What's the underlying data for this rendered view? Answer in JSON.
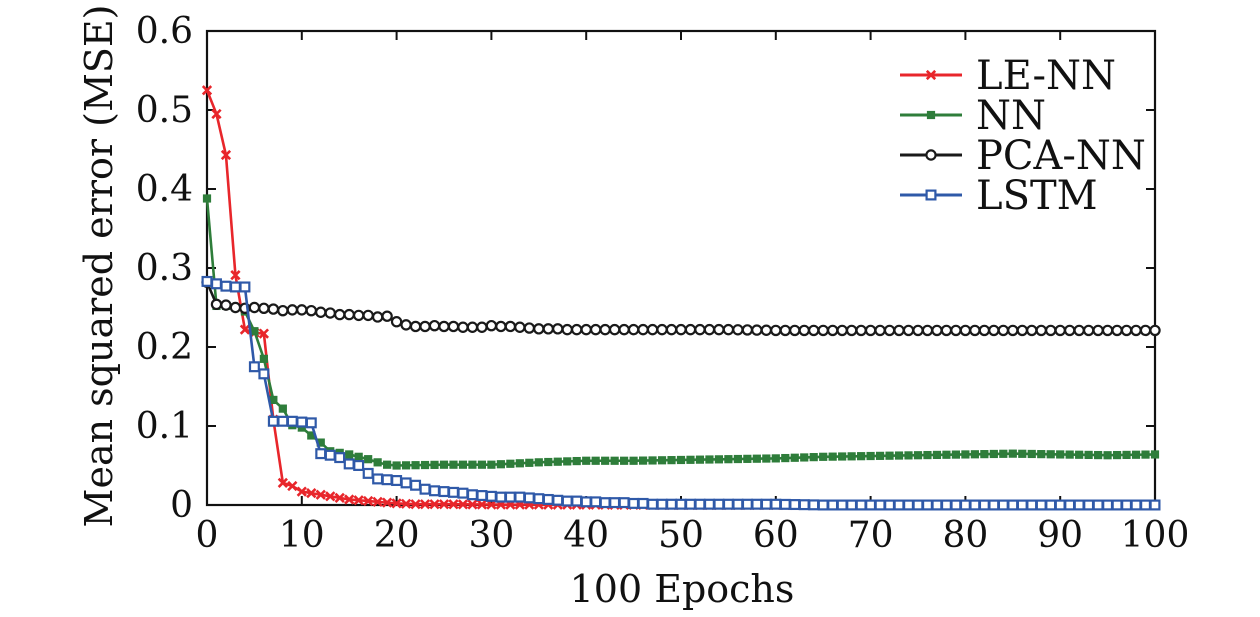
{
  "chart_data": {
    "type": "line",
    "title": "",
    "xlabel": "100 Epochs",
    "ylabel": "Mean squared error (MSE)",
    "xlim": [
      0,
      100
    ],
    "ylim": [
      0,
      0.6
    ],
    "xticks": [
      0,
      10,
      20,
      30,
      40,
      50,
      60,
      70,
      80,
      90,
      100
    ],
    "yticks": [
      0,
      0.1,
      0.2,
      0.3,
      0.4,
      0.5,
      0.6
    ],
    "xtick_labels": [
      "0",
      "10",
      "20",
      "30",
      "40",
      "50",
      "60",
      "70",
      "80",
      "90",
      "100"
    ],
    "ytick_labels": [
      "0",
      "0.1",
      "0.2",
      "0.3",
      "0.4",
      "0.5",
      "0.6"
    ],
    "grid": false,
    "legend_position": "top-right",
    "series": [
      {
        "name": "LE-NN",
        "color": "#e8262b",
        "marker": "x",
        "points": [
          [
            0,
            0.525
          ],
          [
            1,
            0.495
          ],
          [
            2,
            0.443
          ],
          [
            3,
            0.291
          ],
          [
            4,
            0.222
          ],
          [
            5,
            0.218
          ],
          [
            6,
            0.217
          ],
          [
            7,
            0.108
          ],
          [
            8,
            0.028
          ],
          [
            9,
            0.024
          ],
          [
            10,
            0.017
          ],
          [
            11,
            0.015
          ],
          [
            12,
            0.013
          ],
          [
            13,
            0.011
          ],
          [
            14,
            0.009
          ],
          [
            15,
            0.007
          ],
          [
            16,
            0.006
          ],
          [
            17,
            0.005
          ],
          [
            18,
            0.004
          ],
          [
            19,
            0.003
          ],
          [
            20,
            0.002
          ],
          [
            22,
            0.001
          ],
          [
            25,
            0.001
          ],
          [
            30,
            0.0005
          ],
          [
            40,
            0.0003
          ],
          [
            50,
            0
          ],
          [
            60,
            0
          ],
          [
            70,
            0
          ],
          [
            80,
            0
          ],
          [
            90,
            0
          ],
          [
            100,
            0
          ]
        ]
      },
      {
        "name": "NN",
        "color": "#2e7d3a",
        "marker": "filled-square",
        "points": [
          [
            0,
            0.388
          ],
          [
            1,
            0.252
          ],
          [
            2,
            0.252
          ],
          [
            3,
            0.25
          ],
          [
            4,
            0.245
          ],
          [
            5,
            0.22
          ],
          [
            6,
            0.185
          ],
          [
            7,
            0.133
          ],
          [
            8,
            0.122
          ],
          [
            9,
            0.101
          ],
          [
            10,
            0.098
          ],
          [
            11,
            0.088
          ],
          [
            12,
            0.079
          ],
          [
            13,
            0.068
          ],
          [
            14,
            0.066
          ],
          [
            15,
            0.064
          ],
          [
            16,
            0.061
          ],
          [
            17,
            0.058
          ],
          [
            18,
            0.054
          ],
          [
            19,
            0.051
          ],
          [
            20,
            0.05
          ],
          [
            25,
            0.051
          ],
          [
            30,
            0.051
          ],
          [
            35,
            0.054
          ],
          [
            40,
            0.056
          ],
          [
            45,
            0.056
          ],
          [
            50,
            0.057
          ],
          [
            55,
            0.058
          ],
          [
            60,
            0.059
          ],
          [
            65,
            0.061
          ],
          [
            70,
            0.062
          ],
          [
            75,
            0.063
          ],
          [
            80,
            0.064
          ],
          [
            85,
            0.065
          ],
          [
            90,
            0.064
          ],
          [
            95,
            0.063
          ],
          [
            100,
            0.064
          ]
        ]
      },
      {
        "name": "PCA-NN",
        "color": "#1a1a1a",
        "marker": "circle",
        "points": [
          [
            0,
            0.282
          ],
          [
            1,
            0.254
          ],
          [
            2,
            0.253
          ],
          [
            3,
            0.25
          ],
          [
            4,
            0.249
          ],
          [
            5,
            0.25
          ],
          [
            6,
            0.249
          ],
          [
            7,
            0.248
          ],
          [
            8,
            0.246
          ],
          [
            9,
            0.247
          ],
          [
            10,
            0.247
          ],
          [
            11,
            0.246
          ],
          [
            12,
            0.244
          ],
          [
            13,
            0.243
          ],
          [
            14,
            0.241
          ],
          [
            15,
            0.241
          ],
          [
            16,
            0.24
          ],
          [
            17,
            0.24
          ],
          [
            18,
            0.238
          ],
          [
            19,
            0.239
          ],
          [
            20,
            0.232
          ],
          [
            21,
            0.228
          ],
          [
            22,
            0.226
          ],
          [
            23,
            0.226
          ],
          [
            24,
            0.227
          ],
          [
            25,
            0.226
          ],
          [
            26,
            0.226
          ],
          [
            27,
            0.225
          ],
          [
            28,
            0.225
          ],
          [
            29,
            0.225
          ],
          [
            30,
            0.227
          ],
          [
            31,
            0.226
          ],
          [
            32,
            0.226
          ],
          [
            33,
            0.225
          ],
          [
            34,
            0.224
          ],
          [
            35,
            0.223
          ],
          [
            36,
            0.223
          ],
          [
            37,
            0.223
          ],
          [
            38,
            0.222
          ],
          [
            39,
            0.222
          ],
          [
            40,
            0.222
          ],
          [
            45,
            0.222
          ],
          [
            50,
            0.222
          ],
          [
            55,
            0.222
          ],
          [
            60,
            0.221
          ],
          [
            65,
            0.221
          ],
          [
            70,
            0.221
          ],
          [
            75,
            0.221
          ],
          [
            80,
            0.221
          ],
          [
            85,
            0.221
          ],
          [
            90,
            0.221
          ],
          [
            95,
            0.221
          ],
          [
            100,
            0.221
          ]
        ]
      },
      {
        "name": "LSTM",
        "color": "#2f59a8",
        "marker": "square",
        "points": [
          [
            0,
            0.283
          ],
          [
            1,
            0.28
          ],
          [
            2,
            0.277
          ],
          [
            3,
            0.276
          ],
          [
            4,
            0.276
          ],
          [
            5,
            0.175
          ],
          [
            6,
            0.166
          ],
          [
            7,
            0.106
          ],
          [
            8,
            0.106
          ],
          [
            9,
            0.106
          ],
          [
            10,
            0.105
          ],
          [
            11,
            0.104
          ],
          [
            12,
            0.065
          ],
          [
            13,
            0.063
          ],
          [
            14,
            0.06
          ],
          [
            15,
            0.052
          ],
          [
            16,
            0.05
          ],
          [
            17,
            0.04
          ],
          [
            18,
            0.033
          ],
          [
            19,
            0.032
          ],
          [
            20,
            0.031
          ],
          [
            21,
            0.028
          ],
          [
            22,
            0.025
          ],
          [
            23,
            0.02
          ],
          [
            24,
            0.018
          ],
          [
            25,
            0.017
          ],
          [
            26,
            0.016
          ],
          [
            27,
            0.015
          ],
          [
            28,
            0.013
          ],
          [
            29,
            0.012
          ],
          [
            30,
            0.011
          ],
          [
            31,
            0.01
          ],
          [
            32,
            0.01
          ],
          [
            33,
            0.01
          ],
          [
            34,
            0.009
          ],
          [
            35,
            0.008
          ],
          [
            36,
            0.007
          ],
          [
            37,
            0.006
          ],
          [
            38,
            0.005
          ],
          [
            39,
            0.005
          ],
          [
            40,
            0.004
          ],
          [
            41,
            0.004
          ],
          [
            42,
            0.003
          ],
          [
            43,
            0.003
          ],
          [
            44,
            0.003
          ],
          [
            45,
            0.002
          ],
          [
            46,
            0.002
          ],
          [
            47,
            0.001
          ],
          [
            48,
            0.001
          ],
          [
            50,
            0.001
          ],
          [
            55,
            0.001
          ],
          [
            60,
            0.001
          ],
          [
            65,
            0
          ],
          [
            70,
            0
          ],
          [
            75,
            0
          ],
          [
            80,
            0
          ],
          [
            85,
            0
          ],
          [
            90,
            0
          ],
          [
            95,
            0
          ],
          [
            100,
            0
          ]
        ]
      }
    ]
  }
}
